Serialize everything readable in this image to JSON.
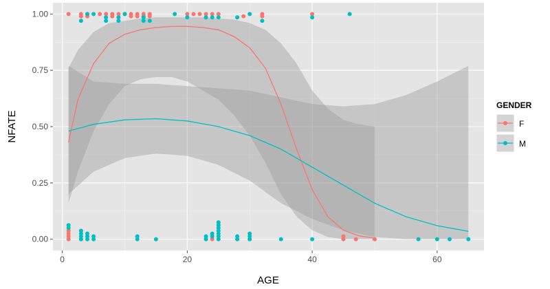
{
  "chart_data": {
    "type": "scatter",
    "xlabel": "AGE",
    "ylabel": "NFATE",
    "xlim": [
      -1.5,
      67.5
    ],
    "ylim": [
      -0.05,
      1.05
    ],
    "x_ticks": [
      0,
      20,
      40,
      60
    ],
    "x_tick_labels": [
      "0",
      "20",
      "40",
      "60"
    ],
    "y_ticks": [
      0,
      0.25,
      0.5,
      0.75,
      1.0
    ],
    "y_tick_labels": [
      "0.00",
      "0.25",
      "0.50",
      "0.75",
      "1.00"
    ],
    "grid": true,
    "legend": {
      "title": "GENDER",
      "placement": "right",
      "entries": [
        {
          "label": "F",
          "color": "#F8766D"
        },
        {
          "label": "M",
          "color": "#00BFC4"
        }
      ]
    },
    "series": [
      {
        "name": "F",
        "color": "#F8766D",
        "points": [
          [
            1,
            0
          ],
          [
            1,
            0.0125
          ],
          [
            1,
            0.025
          ],
          [
            1,
            0.0375
          ],
          [
            1,
            1
          ],
          [
            3,
            0
          ],
          [
            3,
            1
          ],
          [
            3,
            0.99
          ],
          [
            4,
            1
          ],
          [
            4,
            0.99
          ],
          [
            6,
            1
          ],
          [
            7,
            1
          ],
          [
            8,
            1
          ],
          [
            8,
            0.99
          ],
          [
            9,
            1
          ],
          [
            10,
            1
          ],
          [
            11,
            1
          ],
          [
            11,
            0.99
          ],
          [
            12,
            1
          ],
          [
            12,
            0.99
          ],
          [
            13,
            1
          ],
          [
            13,
            0.99
          ],
          [
            14,
            1
          ],
          [
            14,
            0.99
          ],
          [
            20,
            1
          ],
          [
            21,
            1
          ],
          [
            22,
            1
          ],
          [
            23,
            1
          ],
          [
            24,
            1
          ],
          [
            24,
            0
          ],
          [
            25,
            1
          ],
          [
            29,
            0.99
          ],
          [
            32,
            1
          ],
          [
            32,
            0.99
          ],
          [
            40,
            1
          ],
          [
            45,
            0
          ],
          [
            45,
            0.0125
          ],
          [
            47,
            0
          ],
          [
            50,
            0
          ]
        ],
        "fit_x": [
          1,
          2.5,
          5,
          7.5,
          10,
          12.5,
          15,
          17.5,
          20,
          22.5,
          25,
          27.5,
          30,
          32.5,
          35,
          37.5,
          40,
          42.5,
          45,
          47.5,
          50
        ],
        "fit_y": [
          0.43,
          0.62,
          0.78,
          0.87,
          0.91,
          0.93,
          0.94,
          0.945,
          0.945,
          0.94,
          0.93,
          0.9,
          0.85,
          0.76,
          0.6,
          0.4,
          0.22,
          0.1,
          0.04,
          0.015,
          0.005
        ],
        "ribbon_lower": [
          0.16,
          0.3,
          0.48,
          0.6,
          0.68,
          0.71,
          0.72,
          0.72,
          0.7,
          0.66,
          0.62,
          0.55,
          0.46,
          0.34,
          0.2,
          0.1,
          0.04,
          0.01,
          0,
          0,
          0
        ],
        "ribbon_upper": [
          0.76,
          0.84,
          0.92,
          0.96,
          0.97,
          0.98,
          0.985,
          0.985,
          0.985,
          0.985,
          0.98,
          0.975,
          0.96,
          0.93,
          0.87,
          0.78,
          0.66,
          0.58,
          0.53,
          0.51,
          0.5
        ]
      },
      {
        "name": "M",
        "color": "#00BFC4",
        "points": [
          [
            1,
            0.0625
          ],
          [
            1,
            0.05
          ],
          [
            3,
            0.97
          ],
          [
            3,
            0
          ],
          [
            3,
            0.0125
          ],
          [
            3,
            0.025
          ],
          [
            3,
            0.0375
          ],
          [
            4,
            0
          ],
          [
            4,
            0.0125
          ],
          [
            4,
            0.025
          ],
          [
            4,
            1
          ],
          [
            5,
            0
          ],
          [
            5,
            0.0125
          ],
          [
            5,
            1
          ],
          [
            7,
            0.97
          ],
          [
            7,
            0.985
          ],
          [
            9,
            0.97
          ],
          [
            9,
            0.985
          ],
          [
            10,
            1
          ],
          [
            12,
            0
          ],
          [
            12,
            0.0125
          ],
          [
            13,
            0.97
          ],
          [
            13,
            0.985
          ],
          [
            14,
            0.97
          ],
          [
            15,
            0
          ],
          [
            18,
            1
          ],
          [
            20,
            0.985
          ],
          [
            23,
            0
          ],
          [
            23,
            0.0125
          ],
          [
            23,
            0.985
          ],
          [
            24,
            0.0125
          ],
          [
            24,
            0.025
          ],
          [
            24,
            0.985
          ],
          [
            25,
            0
          ],
          [
            25,
            0.0125
          ],
          [
            25,
            0.025
          ],
          [
            25,
            0.0375
          ],
          [
            25,
            0.05
          ],
          [
            25,
            0.0625
          ],
          [
            25,
            0.075
          ],
          [
            25,
            0.985
          ],
          [
            28,
            0
          ],
          [
            28,
            0.0125
          ],
          [
            28,
            0.985
          ],
          [
            30,
            0
          ],
          [
            30,
            0.0125
          ],
          [
            30,
            0.025
          ],
          [
            30,
            1
          ],
          [
            32,
            0.97
          ],
          [
            35,
            0
          ],
          [
            40,
            0
          ],
          [
            40,
            0.985
          ],
          [
            46,
            1
          ],
          [
            57,
            0
          ],
          [
            60,
            0
          ],
          [
            62,
            0
          ],
          [
            65,
            0
          ]
        ],
        "fit_x": [
          1,
          5,
          10,
          15,
          20,
          25,
          30,
          35,
          40,
          45,
          50,
          55,
          60,
          65
        ],
        "fit_y": [
          0.48,
          0.51,
          0.53,
          0.535,
          0.525,
          0.5,
          0.46,
          0.4,
          0.32,
          0.24,
          0.16,
          0.1,
          0.06,
          0.035
        ],
        "ribbon_lower": [
          0.2,
          0.3,
          0.36,
          0.38,
          0.37,
          0.33,
          0.26,
          0.16,
          0.09,
          0.04,
          0.01,
          0,
          0,
          0
        ],
        "ribbon_upper": [
          0.77,
          0.7,
          0.69,
          0.69,
          0.68,
          0.67,
          0.66,
          0.63,
          0.6,
          0.59,
          0.6,
          0.64,
          0.7,
          0.77
        ]
      }
    ]
  }
}
